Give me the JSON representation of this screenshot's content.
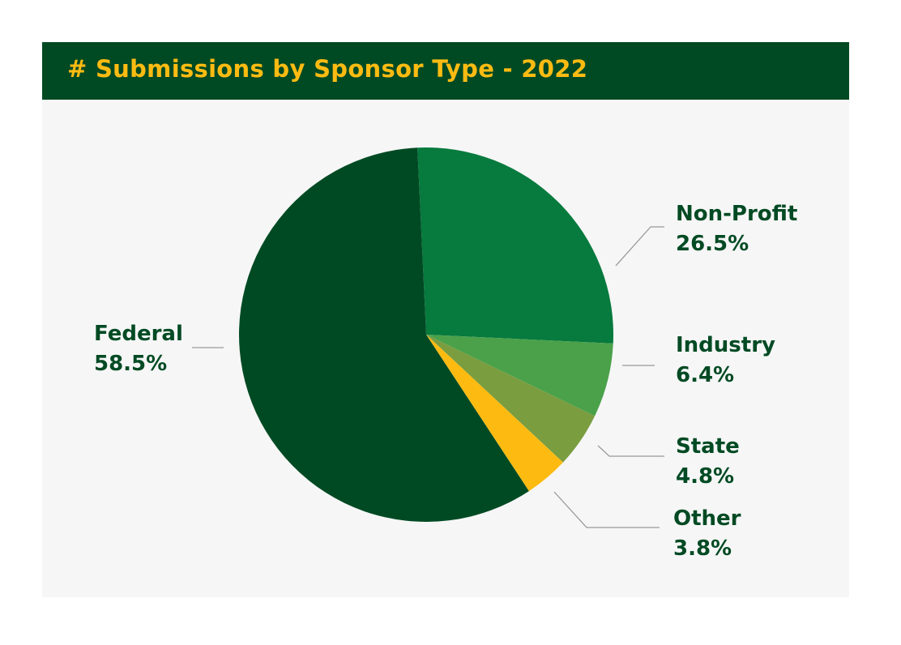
{
  "title": "# Submissions by Sponsor Type - 2022",
  "colors": {
    "header_bg": "#004a23",
    "title_text": "#fdbb12",
    "label_text": "#004a23",
    "leader_line": "#9a9a9a",
    "card_bg": "#f6f6f6"
  },
  "chart_data": {
    "type": "pie",
    "title": "# Submissions by Sponsor Type - 2022",
    "slices": [
      {
        "label": "Non-Profit",
        "value": 26.5,
        "display": "26.5%",
        "color": "#077a3e"
      },
      {
        "label": "Industry",
        "value": 6.4,
        "display": "6.4%",
        "color": "#4aa14a"
      },
      {
        "label": "State",
        "value": 4.8,
        "display": "4.8%",
        "color": "#7a9d40"
      },
      {
        "label": "Other",
        "value": 3.8,
        "display": "3.8%",
        "color": "#fdbb12"
      },
      {
        "label": "Federal",
        "value": 58.5,
        "display": "58.5%",
        "color": "#004a23"
      }
    ]
  }
}
